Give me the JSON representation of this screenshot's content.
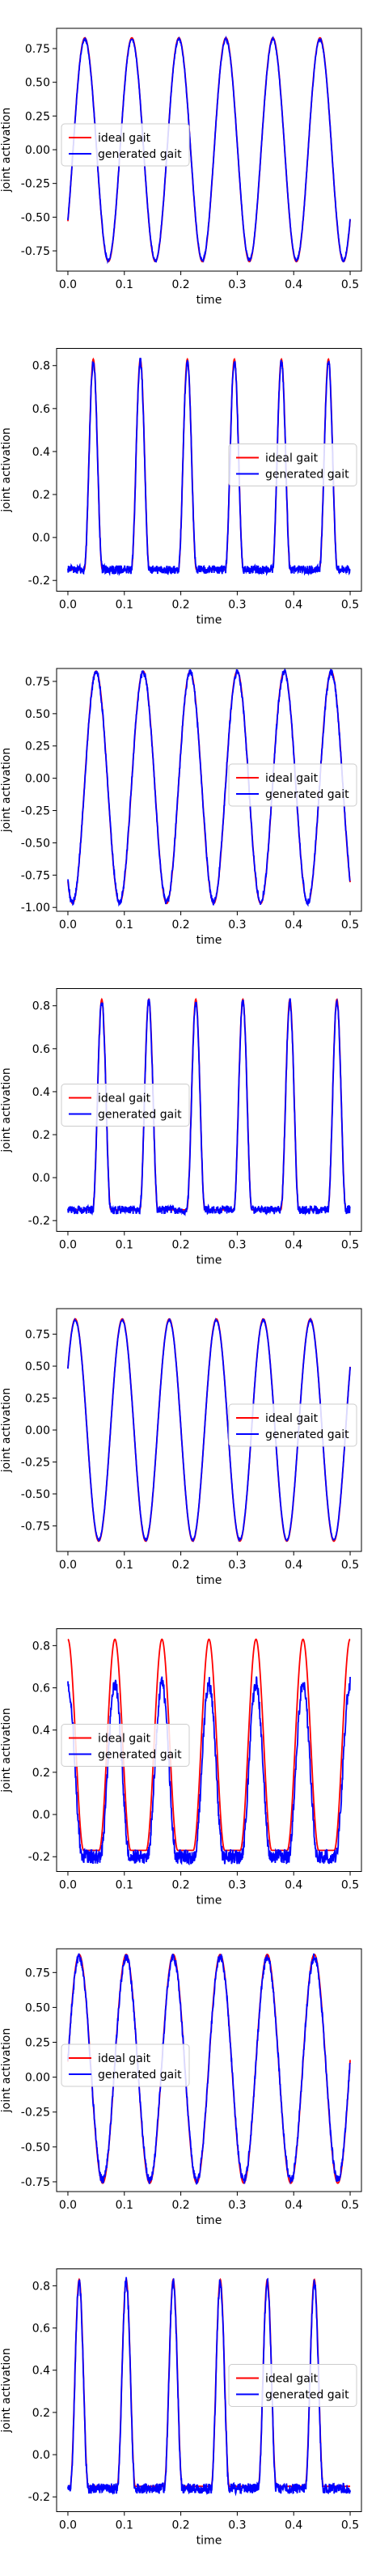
{
  "figure": {
    "colors": {
      "ideal": "#ff0000",
      "generated": "#0000ff",
      "axes": "#000000",
      "legend_border": "#cccccc"
    }
  },
  "chart_data": [
    {
      "type": "line",
      "xlabel": "time",
      "ylabel": "joint activation",
      "xlim": [
        -0.02,
        0.52
      ],
      "ylim": [
        -0.9,
        0.9
      ],
      "xticks": [
        0.0,
        0.1,
        0.2,
        0.3,
        0.4,
        0.5
      ],
      "xtick_labels": [
        "0.0",
        "0.1",
        "0.2",
        "0.3",
        "0.4",
        "0.5"
      ],
      "yticks": [
        -0.75,
        -0.5,
        -0.25,
        0.0,
        0.25,
        0.5,
        0.75
      ],
      "ytick_labels": [
        "-0.75",
        "-0.50",
        "-0.25",
        "0.00",
        "0.25",
        "0.50",
        "0.75"
      ],
      "legend": {
        "placement": "center-left",
        "entries": [
          "ideal gait",
          "generated gait"
        ]
      },
      "grid": false,
      "series": [
        {
          "name": "ideal gait",
          "color": "#ff0000",
          "shape": "sine",
          "period": 0.0833,
          "phase": 0.03,
          "amplitude": 0.83,
          "offset": 0.0
        },
        {
          "name": "generated gait",
          "color": "#0000ff",
          "shape": "sine",
          "period": 0.0833,
          "phase": 0.03,
          "amplitude": 0.82,
          "offset": 0.0,
          "noise": 0.01
        }
      ]
    },
    {
      "type": "line",
      "xlabel": "time",
      "ylabel": "joint activation",
      "xlim": [
        -0.02,
        0.52
      ],
      "ylim": [
        -0.25,
        0.88
      ],
      "xticks": [
        0.0,
        0.1,
        0.2,
        0.3,
        0.4,
        0.5
      ],
      "xtick_labels": [
        "0.0",
        "0.1",
        "0.2",
        "0.3",
        "0.4",
        "0.5"
      ],
      "yticks": [
        -0.2,
        0.0,
        0.2,
        0.4,
        0.6,
        0.8
      ],
      "ytick_labels": [
        "-0.2",
        "0.0",
        "0.2",
        "0.4",
        "0.6",
        "0.8"
      ],
      "legend": {
        "placement": "center-right",
        "entries": [
          "ideal gait",
          "generated gait"
        ]
      },
      "grid": false,
      "series": [
        {
          "name": "ideal gait",
          "color": "#ff0000",
          "shape": "pulse",
          "period": 0.0833,
          "phase": 0.045,
          "peak": 0.83,
          "base": -0.15,
          "width": 0.016
        },
        {
          "name": "generated gait",
          "color": "#0000ff",
          "shape": "pulse",
          "period": 0.0833,
          "phase": 0.045,
          "peak": 0.82,
          "base": -0.15,
          "width": 0.016,
          "noise": 0.02
        }
      ]
    },
    {
      "type": "line",
      "xlabel": "time",
      "ylabel": "joint activation",
      "xlim": [
        -0.02,
        0.52
      ],
      "ylim": [
        -1.03,
        0.85
      ],
      "xticks": [
        0.0,
        0.1,
        0.2,
        0.3,
        0.4,
        0.5
      ],
      "xtick_labels": [
        "0.0",
        "0.1",
        "0.2",
        "0.3",
        "0.4",
        "0.5"
      ],
      "yticks": [
        -1.0,
        -0.75,
        -0.5,
        -0.25,
        0.0,
        0.25,
        0.5,
        0.75
      ],
      "ytick_labels": [
        "-1.00",
        "-0.75",
        "-0.50",
        "-0.25",
        "0.00",
        "0.25",
        "0.50",
        "0.75"
      ],
      "legend": {
        "placement": "center-right",
        "entries": [
          "ideal gait",
          "generated gait"
        ]
      },
      "grid": false,
      "series": [
        {
          "name": "ideal gait",
          "color": "#ff0000",
          "shape": "sine",
          "period": 0.0833,
          "phase": 0.05,
          "amplitude": 0.9,
          "offset": -0.07
        },
        {
          "name": "generated gait",
          "color": "#0000ff",
          "shape": "sine",
          "period": 0.0833,
          "phase": 0.05,
          "amplitude": 0.89,
          "offset": -0.07,
          "noise": 0.025
        }
      ]
    },
    {
      "type": "line",
      "xlabel": "time",
      "ylabel": "joint activation",
      "xlim": [
        -0.02,
        0.52
      ],
      "ylim": [
        -0.25,
        0.88
      ],
      "xticks": [
        0.0,
        0.1,
        0.2,
        0.3,
        0.4,
        0.5
      ],
      "xtick_labels": [
        "0.0",
        "0.1",
        "0.2",
        "0.3",
        "0.4",
        "0.5"
      ],
      "yticks": [
        -0.2,
        0.0,
        0.2,
        0.4,
        0.6,
        0.8
      ],
      "ytick_labels": [
        "-0.2",
        "0.0",
        "0.2",
        "0.4",
        "0.6",
        "0.8"
      ],
      "legend": {
        "placement": "center-left",
        "entries": [
          "ideal gait",
          "generated gait"
        ]
      },
      "grid": false,
      "series": [
        {
          "name": "ideal gait",
          "color": "#ff0000",
          "shape": "pulse",
          "period": 0.0833,
          "phase": 0.06,
          "peak": 0.83,
          "base": -0.15,
          "width": 0.016
        },
        {
          "name": "generated gait",
          "color": "#0000ff",
          "shape": "pulse",
          "period": 0.0833,
          "phase": 0.06,
          "peak": 0.82,
          "base": -0.15,
          "width": 0.016,
          "noise": 0.02
        }
      ]
    },
    {
      "type": "line",
      "xlabel": "time",
      "ylabel": "joint activation",
      "xlim": [
        -0.02,
        0.52
      ],
      "ylim": [
        -0.95,
        0.95
      ],
      "xticks": [
        0.0,
        0.1,
        0.2,
        0.3,
        0.4,
        0.5
      ],
      "xtick_labels": [
        "0.0",
        "0.1",
        "0.2",
        "0.3",
        "0.4",
        "0.5"
      ],
      "yticks": [
        -0.75,
        -0.5,
        -0.25,
        0.0,
        0.25,
        0.5,
        0.75
      ],
      "ytick_labels": [
        "-0.75",
        "-0.50",
        "-0.25",
        "0.00",
        "0.25",
        "0.50",
        "0.75"
      ],
      "legend": {
        "placement": "center-right",
        "entries": [
          "ideal gait",
          "generated gait"
        ]
      },
      "grid": false,
      "series": [
        {
          "name": "ideal gait",
          "color": "#ff0000",
          "shape": "sine",
          "period": 0.0833,
          "phase": 0.013,
          "amplitude": 0.87,
          "offset": 0.0
        },
        {
          "name": "generated gait",
          "color": "#0000ff",
          "shape": "sine",
          "period": 0.0833,
          "phase": 0.013,
          "amplitude": 0.86,
          "offset": 0.0,
          "noise": 0.006
        }
      ]
    },
    {
      "type": "line",
      "xlabel": "time",
      "ylabel": "joint activation",
      "xlim": [
        -0.02,
        0.52
      ],
      "ylim": [
        -0.27,
        0.88
      ],
      "xticks": [
        0.0,
        0.1,
        0.2,
        0.3,
        0.4,
        0.5
      ],
      "xtick_labels": [
        "0.0",
        "0.1",
        "0.2",
        "0.3",
        "0.4",
        "0.5"
      ],
      "yticks": [
        -0.2,
        0.0,
        0.2,
        0.4,
        0.6,
        0.8
      ],
      "ytick_labels": [
        "-0.2",
        "0.0",
        "0.2",
        "0.4",
        "0.6",
        "0.8"
      ],
      "legend": {
        "placement": "center-left",
        "entries": [
          "ideal gait",
          "generated gait"
        ]
      },
      "grid": false,
      "series": [
        {
          "name": "ideal gait",
          "color": "#ff0000",
          "shape": "pulse",
          "period": 0.0833,
          "phase": 0.0,
          "peak": 0.83,
          "base": -0.17,
          "width": 0.028
        },
        {
          "name": "generated gait",
          "color": "#0000ff",
          "shape": "pulse",
          "period": 0.0833,
          "phase": 0.0,
          "peak": 0.62,
          "base": -0.2,
          "width": 0.026,
          "noise": 0.035
        }
      ]
    },
    {
      "type": "line",
      "xlabel": "time",
      "ylabel": "joint activation",
      "xlim": [
        -0.02,
        0.52
      ],
      "ylim": [
        -0.82,
        0.92
      ],
      "xticks": [
        0.0,
        0.1,
        0.2,
        0.3,
        0.4,
        0.5
      ],
      "xtick_labels": [
        "0.0",
        "0.1",
        "0.2",
        "0.3",
        "0.4",
        "0.5"
      ],
      "yticks": [
        -0.75,
        -0.5,
        -0.25,
        0.0,
        0.25,
        0.5,
        0.75
      ],
      "ytick_labels": [
        "-0.75",
        "-0.50",
        "-0.25",
        "0.00",
        "0.25",
        "0.50",
        "0.75"
      ],
      "legend": {
        "placement": "center-left",
        "entries": [
          "ideal gait",
          "generated gait"
        ]
      },
      "grid": false,
      "series": [
        {
          "name": "ideal gait",
          "color": "#ff0000",
          "shape": "sine",
          "period": 0.0833,
          "phase": 0.02,
          "amplitude": 0.82,
          "offset": 0.06
        },
        {
          "name": "generated gait",
          "color": "#0000ff",
          "shape": "sine",
          "period": 0.0833,
          "phase": 0.02,
          "amplitude": 0.8,
          "offset": 0.06,
          "noise": 0.03
        }
      ]
    },
    {
      "type": "line",
      "xlabel": "time",
      "ylabel": "joint activation",
      "xlim": [
        -0.02,
        0.52
      ],
      "ylim": [
        -0.27,
        0.88
      ],
      "xticks": [
        0.0,
        0.1,
        0.2,
        0.3,
        0.4,
        0.5
      ],
      "xtick_labels": [
        "0.0",
        "0.1",
        "0.2",
        "0.3",
        "0.4",
        "0.5"
      ],
      "yticks": [
        -0.2,
        0.0,
        0.2,
        0.4,
        0.6,
        0.8
      ],
      "ytick_labels": [
        "-0.2",
        "0.0",
        "0.2",
        "0.4",
        "0.6",
        "0.8"
      ],
      "legend": {
        "placement": "center-right",
        "entries": [
          "ideal gait",
          "generated gait"
        ]
      },
      "grid": false,
      "series": [
        {
          "name": "ideal gait",
          "color": "#ff0000",
          "shape": "pulse",
          "period": 0.0833,
          "phase": 0.02,
          "peak": 0.83,
          "base": -0.15,
          "width": 0.016
        },
        {
          "name": "generated gait",
          "color": "#0000ff",
          "shape": "pulse",
          "period": 0.0833,
          "phase": 0.02,
          "peak": 0.82,
          "base": -0.16,
          "width": 0.016,
          "noise": 0.025
        }
      ]
    }
  ]
}
